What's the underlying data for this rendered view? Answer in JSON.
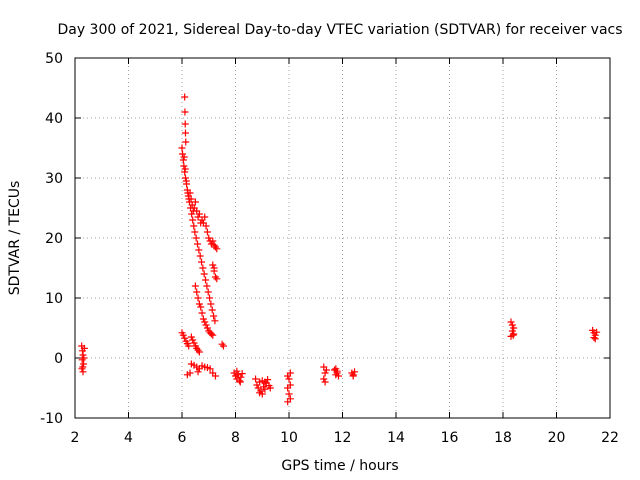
{
  "chart_data": {
    "type": "scatter",
    "title": "Day 300 of 2021, Sidereal Day-to-day VTEC variation (SDTVAR) for receiver vacs",
    "xlabel": "GPS time / hours",
    "ylabel": "SDTVAR / TECUs",
    "xlim": [
      2,
      22
    ],
    "ylim": [
      -10,
      50
    ],
    "xticks": [
      "2",
      "4",
      "6",
      "8",
      "10",
      "12",
      "14",
      "16",
      "18",
      "20",
      "22"
    ],
    "yticks": [
      "-10",
      "0",
      "10",
      "20",
      "30",
      "40",
      "50"
    ],
    "grid": true,
    "marker": "plus",
    "series": [
      {
        "name": "SDTVAR",
        "color": "#ff0000",
        "points": [
          [
            2.25,
            2.0
          ],
          [
            2.28,
            1.2
          ],
          [
            2.3,
            0.5
          ],
          [
            2.27,
            -0.3
          ],
          [
            2.32,
            -1.0
          ],
          [
            2.26,
            -1.8
          ],
          [
            2.3,
            -2.3
          ],
          [
            2.35,
            1.6
          ],
          [
            2.33,
            0.0
          ],
          [
            2.29,
            -1.5
          ],
          [
            6.0,
            35.0
          ],
          [
            6.02,
            34.0
          ],
          [
            6.05,
            33.0
          ],
          [
            6.07,
            32.0
          ],
          [
            6.1,
            31.0
          ],
          [
            6.13,
            30.0
          ],
          [
            6.17,
            29.0
          ],
          [
            6.2,
            28.0
          ],
          [
            6.24,
            27.0
          ],
          [
            6.28,
            26.0
          ],
          [
            6.32,
            25.0
          ],
          [
            6.36,
            24.0
          ],
          [
            6.4,
            23.0
          ],
          [
            6.44,
            22.0
          ],
          [
            6.48,
            21.0
          ],
          [
            6.53,
            20.0
          ],
          [
            6.58,
            19.0
          ],
          [
            6.63,
            18.0
          ],
          [
            6.68,
            17.0
          ],
          [
            6.73,
            16.0
          ],
          [
            6.78,
            15.0
          ],
          [
            6.83,
            14.0
          ],
          [
            6.88,
            13.0
          ],
          [
            6.93,
            12.0
          ],
          [
            6.98,
            11.0
          ],
          [
            7.03,
            10.0
          ],
          [
            7.08,
            9.0
          ],
          [
            7.13,
            8.0
          ],
          [
            7.18,
            7.0
          ],
          [
            7.23,
            6.2
          ],
          [
            6.1,
            43.5
          ],
          [
            6.11,
            41.0
          ],
          [
            6.12,
            39.0
          ],
          [
            6.13,
            37.5
          ],
          [
            6.14,
            36.0
          ],
          [
            6.08,
            33.5
          ],
          [
            6.12,
            31.5
          ],
          [
            6.16,
            29.5
          ],
          [
            6.22,
            27.5
          ],
          [
            6.26,
            26.5
          ],
          [
            6.3,
            27.5
          ],
          [
            6.34,
            26.5
          ],
          [
            6.38,
            25.5
          ],
          [
            6.42,
            24.5
          ],
          [
            6.46,
            25.0
          ],
          [
            6.5,
            26.0
          ],
          [
            6.55,
            24.5
          ],
          [
            6.6,
            23.5
          ],
          [
            6.65,
            24.0
          ],
          [
            6.7,
            22.5
          ],
          [
            6.75,
            23.0
          ],
          [
            6.8,
            22.5
          ],
          [
            6.85,
            23.5
          ],
          [
            6.9,
            22.0
          ],
          [
            6.95,
            21.0
          ],
          [
            7.0,
            20.0
          ],
          [
            7.05,
            19.5
          ],
          [
            7.1,
            19.0
          ],
          [
            7.15,
            19.5
          ],
          [
            7.2,
            18.8
          ],
          [
            7.25,
            18.5
          ],
          [
            7.3,
            18.2
          ],
          [
            7.15,
            15.5
          ],
          [
            7.2,
            14.5
          ],
          [
            7.25,
            13.5
          ],
          [
            7.3,
            13.2
          ],
          [
            7.2,
            15.0
          ],
          [
            6.5,
            12.0
          ],
          [
            6.55,
            11.0
          ],
          [
            6.6,
            10.0
          ],
          [
            6.65,
            9.0
          ],
          [
            6.7,
            8.5
          ],
          [
            6.75,
            7.5
          ],
          [
            6.8,
            6.5
          ],
          [
            6.85,
            6.0
          ],
          [
            6.9,
            5.5
          ],
          [
            6.95,
            5.0
          ],
          [
            7.0,
            4.5
          ],
          [
            7.05,
            4.2
          ],
          [
            7.1,
            4.0
          ],
          [
            7.15,
            3.8
          ],
          [
            6.0,
            4.2
          ],
          [
            6.05,
            3.8
          ],
          [
            6.1,
            3.3
          ],
          [
            6.15,
            2.8
          ],
          [
            6.2,
            2.4
          ],
          [
            6.25,
            2.0
          ],
          [
            6.35,
            3.5
          ],
          [
            6.4,
            3.0
          ],
          [
            6.45,
            2.5
          ],
          [
            6.5,
            2.0
          ],
          [
            6.55,
            1.6
          ],
          [
            6.6,
            1.3
          ],
          [
            6.65,
            1.0
          ],
          [
            7.5,
            2.3
          ],
          [
            7.55,
            2.0
          ],
          [
            6.2,
            -2.8
          ],
          [
            6.3,
            -2.5
          ],
          [
            6.35,
            -1.0
          ],
          [
            6.45,
            -1.2
          ],
          [
            6.55,
            -1.5
          ],
          [
            6.65,
            -1.8
          ],
          [
            6.75,
            -1.3
          ],
          [
            6.85,
            -1.5
          ],
          [
            6.95,
            -1.6
          ],
          [
            7.05,
            -1.8
          ],
          [
            7.15,
            -2.5
          ],
          [
            7.25,
            -3.0
          ],
          [
            6.6,
            -2.3
          ],
          [
            7.95,
            -2.5
          ],
          [
            8.0,
            -3.0
          ],
          [
            8.05,
            -3.5
          ],
          [
            8.1,
            -2.8
          ],
          [
            8.15,
            -3.8
          ],
          [
            8.2,
            -3.2
          ],
          [
            8.25,
            -2.6
          ],
          [
            8.05,
            -2.2
          ],
          [
            8.18,
            -4.0
          ],
          [
            8.75,
            -3.5
          ],
          [
            8.8,
            -4.5
          ],
          [
            8.85,
            -5.0
          ],
          [
            8.9,
            -4.0
          ],
          [
            8.95,
            -5.5
          ],
          [
            9.0,
            -3.8
          ],
          [
            9.05,
            -4.8
          ],
          [
            9.1,
            -5.2
          ],
          [
            9.15,
            -4.2
          ],
          [
            9.2,
            -3.6
          ],
          [
            9.25,
            -4.6
          ],
          [
            9.3,
            -5.0
          ],
          [
            8.9,
            -5.8
          ],
          [
            9.0,
            -6.0
          ],
          [
            9.1,
            -4.0
          ],
          [
            9.95,
            -3.0
          ],
          [
            10.0,
            -3.5
          ],
          [
            10.05,
            -2.5
          ],
          [
            9.95,
            -5.0
          ],
          [
            10.0,
            -6.0
          ],
          [
            10.05,
            -6.8
          ],
          [
            9.95,
            -7.3
          ],
          [
            10.05,
            -4.5
          ],
          [
            11.3,
            -1.5
          ],
          [
            11.35,
            -2.5
          ],
          [
            11.3,
            -3.5
          ],
          [
            11.35,
            -4.0
          ],
          [
            11.4,
            -2.0
          ],
          [
            11.7,
            -2.0
          ],
          [
            11.75,
            -2.8
          ],
          [
            11.8,
            -2.5
          ],
          [
            11.85,
            -3.0
          ],
          [
            11.75,
            -1.8
          ],
          [
            11.8,
            -2.2
          ],
          [
            12.35,
            -2.5
          ],
          [
            12.4,
            -3.0
          ],
          [
            12.45,
            -2.3
          ],
          [
            12.4,
            -2.8
          ],
          [
            18.3,
            6.0
          ],
          [
            18.35,
            5.5
          ],
          [
            18.4,
            5.0
          ],
          [
            18.35,
            4.5
          ],
          [
            18.4,
            4.0
          ],
          [
            18.3,
            3.6
          ],
          [
            18.38,
            3.8
          ],
          [
            21.35,
            4.6
          ],
          [
            21.4,
            4.2
          ],
          [
            21.45,
            3.8
          ],
          [
            21.4,
            3.4
          ],
          [
            21.5,
            4.3
          ],
          [
            21.45,
            3.2
          ]
        ]
      }
    ]
  }
}
